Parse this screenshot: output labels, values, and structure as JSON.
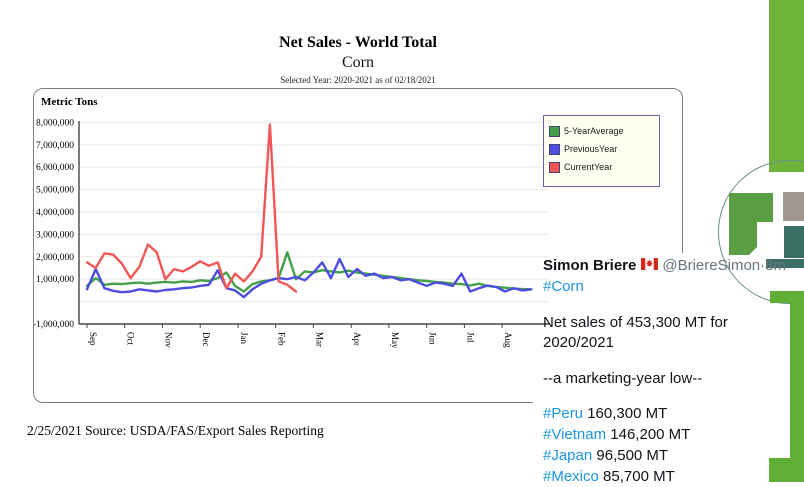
{
  "header": {
    "title": "Net Sales - World Total",
    "subtitle": "Corn",
    "selected_year_note": "Selected Year: 2020-2021 as of 02/18/2021"
  },
  "chart": {
    "y_axis_title": "Metric Tons",
    "source_note": "2/25/2021 Source: USDA/FAS/Export Sales Reporting"
  },
  "chart_data": {
    "type": "line",
    "title": "Net Sales - World Total",
    "subtitle": "Corn",
    "ylabel": "Metric Tons",
    "unit": "values in million metric tons (weekly net sales, marketing year Sep-Aug)",
    "ylim": [
      -1000000,
      8000000
    ],
    "y_ticks": [
      "8,000,000",
      "7,000,000",
      "6,000,000",
      "5,000,000",
      "4,000,000",
      "3,000,000",
      "2,000,000",
      "1,000,000",
      "-1,000,000"
    ],
    "y_tick_values_million": [
      8,
      7,
      6,
      5,
      4,
      3,
      2,
      1,
      -1
    ],
    "categories": [
      "Sep",
      "Oct",
      "Nov",
      "Dec",
      "Jan",
      "Feb",
      "Mar",
      "Apr",
      "May",
      "Jun",
      "Jul",
      "Aug"
    ],
    "grid": true,
    "legend_position": "top-right",
    "series": [
      {
        "name": "5-YearAverage",
        "color": "#44a048",
        "values": [
          0.7,
          1.05,
          0.75,
          0.8,
          0.78,
          0.82,
          0.85,
          0.8,
          0.85,
          0.88,
          0.85,
          0.9,
          0.88,
          0.95,
          0.92,
          1.05,
          1.3,
          0.7,
          0.45,
          0.78,
          0.9,
          0.95,
          1.05,
          2.2,
          1.0,
          1.35,
          1.3,
          1.4,
          1.35,
          1.3,
          1.38,
          1.3,
          1.25,
          1.2,
          1.15,
          1.1,
          1.05,
          1.0,
          0.95,
          0.92,
          0.88,
          0.85,
          0.8,
          0.78,
          0.72,
          0.8,
          0.7,
          0.65,
          0.62,
          0.58,
          0.56,
          0.55
        ]
      },
      {
        "name": "PreviousYear",
        "color": "#4d4de0",
        "values": [
          0.55,
          1.45,
          0.6,
          0.48,
          0.42,
          0.45,
          0.55,
          0.5,
          0.45,
          0.52,
          0.55,
          0.6,
          0.63,
          0.7,
          0.75,
          1.4,
          0.6,
          0.5,
          0.2,
          0.55,
          0.8,
          0.95,
          1.05,
          1.0,
          1.1,
          0.95,
          1.3,
          1.75,
          1.05,
          1.9,
          1.1,
          1.45,
          1.15,
          1.25,
          1.05,
          1.1,
          0.95,
          1.0,
          0.85,
          0.7,
          0.85,
          0.8,
          0.7,
          1.25,
          0.45,
          0.6,
          0.72,
          0.65,
          0.45,
          0.6,
          0.5,
          0.55
        ]
      },
      {
        "name": "CurrentYear",
        "color": "#f25757",
        "values": [
          1.75,
          1.5,
          2.15,
          2.1,
          1.7,
          1.05,
          1.55,
          2.55,
          2.2,
          1.0,
          1.45,
          1.35,
          1.55,
          1.8,
          1.6,
          1.75,
          0.6,
          1.25,
          0.9,
          1.35,
          2.0,
          7.9,
          0.9,
          0.75,
          0.453
        ]
      }
    ]
  },
  "tweet": {
    "display_name": "Simon Briere",
    "flag": "canada-flag",
    "handle": "@BriereSimon",
    "separator": " · ",
    "time_ago": "8m",
    "hashtag": "#Corn",
    "line1": "Net sales of 453,300 MT for 2020/2021",
    "line2": "--a marketing-year low--",
    "countries": [
      {
        "tag": "#Peru",
        "value": "160,300 MT"
      },
      {
        "tag": "#Vietnam",
        "value": "146,200 MT"
      },
      {
        "tag": "#Japan",
        "value": "96,500 MT"
      },
      {
        "tag": "#Mexico",
        "value": "85,700 MT"
      }
    ]
  },
  "colors": {
    "twitter_link": "#1b95e0",
    "tweet_meta": "#68757f",
    "legend_bg": "#fffff2",
    "legend_border": "#6262ae",
    "brand_green": "#6fb43a",
    "logo_green": "#5a9e44",
    "logo_gray": "#9d978f",
    "logo_teal": "#3c6f63",
    "axis": "#444444",
    "gridline": "#e8e8e8"
  }
}
